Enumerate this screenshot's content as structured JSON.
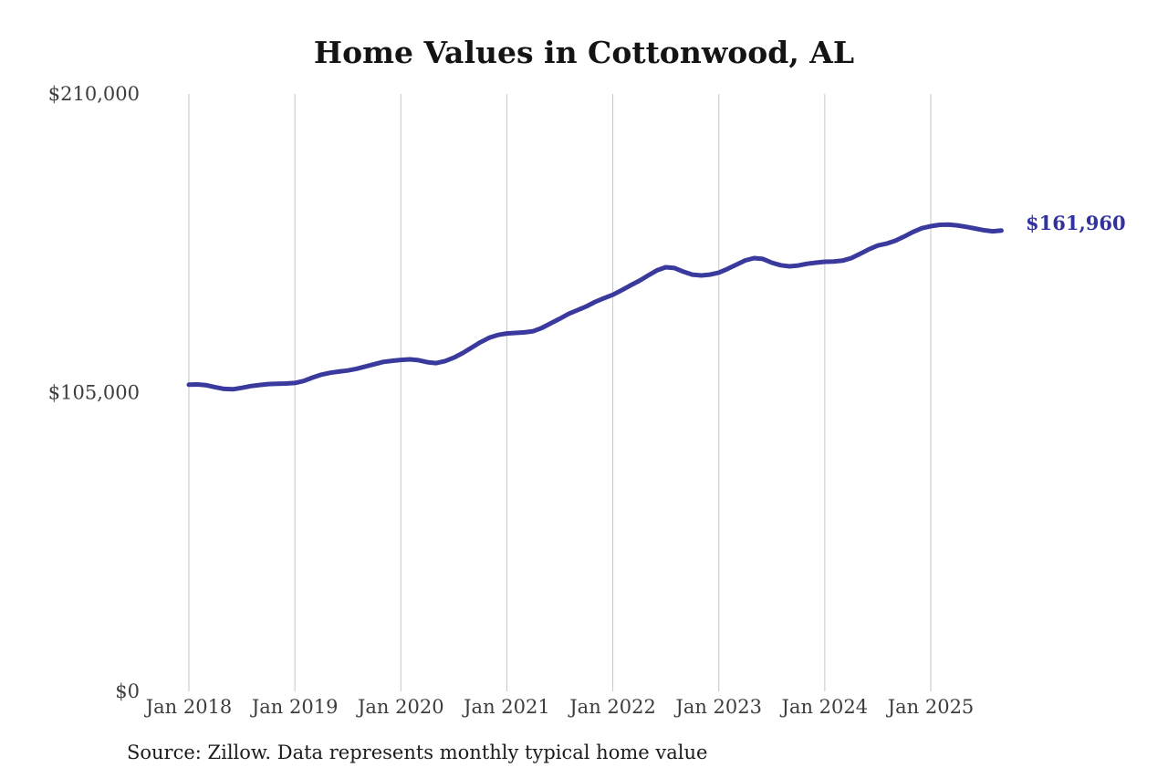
{
  "chart_data": {
    "type": "line",
    "title": "Home Values in Cottonwood, AL",
    "source_note": "Source: Zillow. Data represents monthly typical home value",
    "end_label": "$161,960",
    "latest_value": 161960,
    "start_month": "2018-01",
    "end_month": "2025-09",
    "x_tick_labels": [
      "Jan 2018",
      "Jan 2019",
      "Jan 2020",
      "Jan 2021",
      "Jan 2022",
      "Jan 2023",
      "Jan 2024",
      "Jan 2025"
    ],
    "x_tick_month_indices": [
      0,
      12,
      24,
      36,
      48,
      60,
      72,
      84
    ],
    "y_ticks": [
      {
        "label": "$0",
        "value": 0
      },
      {
        "label": "$105,000",
        "value": 105000
      },
      {
        "label": "$210,000",
        "value": 210000
      }
    ],
    "ylim": [
      0,
      210000
    ],
    "grid": "vertical-only",
    "legend": "none",
    "series": [
      {
        "name": "Monthly typical home value",
        "values": [
          107800,
          107900,
          107600,
          106900,
          106300,
          106200,
          106700,
          107300,
          107700,
          108000,
          108100,
          108200,
          108400,
          109100,
          110300,
          111300,
          112000,
          112400,
          112800,
          113400,
          114200,
          115000,
          115800,
          116200,
          116500,
          116700,
          116400,
          115700,
          115400,
          116100,
          117300,
          118900,
          120800,
          122700,
          124300,
          125300,
          125800,
          126000,
          126200,
          126600,
          127800,
          129400,
          131000,
          132700,
          134000,
          135300,
          136900,
          138200,
          139400,
          141000,
          142700,
          144300,
          146200,
          148000,
          149100,
          148800,
          147500,
          146500,
          146200,
          146500,
          147200,
          148500,
          150000,
          151500,
          152300,
          152000,
          150700,
          149800,
          149400,
          149700,
          150300,
          150700,
          151000,
          151100,
          151400,
          152300,
          153800,
          155400,
          156700,
          157400,
          158400,
          159900,
          161500,
          162800,
          163500,
          164000,
          164100,
          163800,
          163300,
          162700,
          162100,
          161700,
          161960
        ]
      }
    ],
    "colors": {
      "line": "#3a3a9e",
      "end_label": "#32329e",
      "grid": "#c6c6c6",
      "tick_text": "#3d3d3d",
      "title_text": "#141414",
      "source_text": "#1c1c1c",
      "background": "#ffffff"
    }
  }
}
